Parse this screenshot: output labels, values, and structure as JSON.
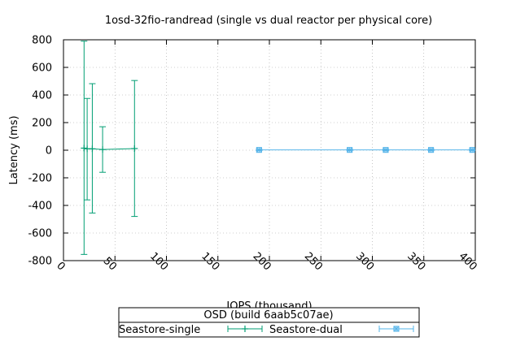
{
  "chart_data": {
    "type": "line",
    "title": "1osd-32fio-randread (single vs dual reactor per physical core)",
    "xlabel": "IOPS (thousand)",
    "ylabel": "Latency (ms)",
    "xlim": [
      0,
      400
    ],
    "ylim": [
      -800,
      800
    ],
    "x_ticks": [
      "0",
      "50",
      "100",
      "150",
      "200",
      "250",
      "300",
      "350",
      "400"
    ],
    "y_ticks": [
      "800",
      "600",
      "400",
      "200",
      "0",
      "-200",
      "-400",
      "-600",
      "-800"
    ],
    "grid": true,
    "legend": {
      "title": "OSD (build 6aab5c07ae)",
      "placement": "bottom"
    },
    "series": [
      {
        "name": "Seastore-single",
        "color": "#009e73",
        "marker": "plus",
        "points": [
          {
            "x": 20,
            "y": 15,
            "err_low": -755,
            "err_high": 790
          },
          {
            "x": 23,
            "y": 10,
            "err_low": -360,
            "err_high": 375
          },
          {
            "x": 28,
            "y": 10,
            "err_low": -455,
            "err_high": 482
          },
          {
            "x": 38,
            "y": 5,
            "err_low": -160,
            "err_high": 170
          },
          {
            "x": 69,
            "y": 12,
            "err_low": -480,
            "err_high": 505
          }
        ]
      },
      {
        "name": "Seastore-dual",
        "color": "#56b4e9",
        "marker": "star-square",
        "points": [
          {
            "x": 190,
            "y": 2,
            "err_low": -3,
            "err_high": 7
          },
          {
            "x": 278,
            "y": 2,
            "err_low": -3,
            "err_high": 7
          },
          {
            "x": 313,
            "y": 2,
            "err_low": -3,
            "err_high": 7
          },
          {
            "x": 357,
            "y": 2,
            "err_low": -3,
            "err_high": 7
          },
          {
            "x": 397,
            "y": 2,
            "err_low": -3,
            "err_high": 7
          }
        ]
      }
    ]
  }
}
